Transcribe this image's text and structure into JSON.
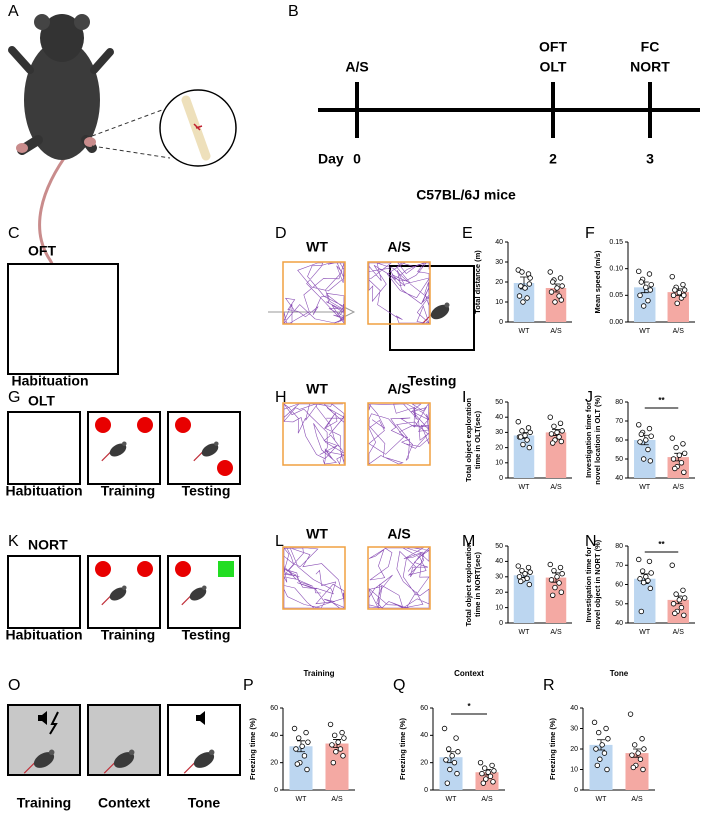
{
  "panel_letters": [
    "A",
    "B",
    "C",
    "D",
    "E",
    "F",
    "G",
    "H",
    "I",
    "J",
    "K",
    "L",
    "M",
    "N",
    "O",
    "P",
    "Q",
    "R"
  ],
  "timeline": {
    "day_label": "Day",
    "days": [
      0,
      2,
      3
    ],
    "tests": [
      [
        "A/S"
      ],
      [
        "OFT",
        "OLT"
      ],
      [
        "FC",
        "NORT"
      ]
    ],
    "caption": "C57BL/6J mice"
  },
  "schematics": {
    "C": {
      "title": "OFT",
      "labels": [
        "Habituation",
        "Testing"
      ]
    },
    "G": {
      "title": "OLT",
      "labels": [
        "Habituation",
        "Training",
        "Testing"
      ]
    },
    "K": {
      "title": "NORT",
      "labels": [
        "Habituation",
        "Training",
        "Testing"
      ]
    },
    "O": {
      "labels": [
        "Training",
        "Context",
        "Tone"
      ]
    }
  },
  "tracks": {
    "D": [
      "WT",
      "A/S"
    ],
    "H": [
      "WT",
      "A/S"
    ],
    "L": [
      "WT",
      "A/S"
    ]
  },
  "chart_data": [
    {
      "type": "bar",
      "ylabel": [
        "Total distance (m)"
      ],
      "categories": [
        "WT",
        "A/S"
      ],
      "values": [
        19.5,
        17
      ],
      "errors": [
        3,
        2
      ],
      "points": [
        [
          26,
          24,
          25,
          22,
          17,
          13,
          12,
          10,
          19,
          18
        ],
        [
          25,
          22,
          21,
          18,
          17,
          15,
          13,
          10,
          11,
          20
        ]
      ],
      "colors": [
        "#bcd6f0",
        "#f4a9a3"
      ],
      "ylim": [
        0,
        40
      ],
      "yticks": [
        0,
        10,
        20,
        30,
        40
      ]
    },
    {
      "type": "bar",
      "ylabel": [
        "Mean speed (m/s)"
      ],
      "categories": [
        "WT",
        "A/S"
      ],
      "values": [
        0.065,
        0.056
      ],
      "errors": [
        0.01,
        0.006
      ],
      "points": [
        [
          0.095,
          0.09,
          0.08,
          0.07,
          0.065,
          0.05,
          0.04,
          0.03,
          0.06,
          0.075
        ],
        [
          0.085,
          0.07,
          0.065,
          0.06,
          0.055,
          0.05,
          0.045,
          0.035,
          0.05,
          0.06
        ]
      ],
      "colors": [
        "#bcd6f0",
        "#f4a9a3"
      ],
      "ylim": [
        0,
        0.15
      ],
      "yticks": [
        {
          "value": 0,
          "label": "0.00"
        },
        {
          "value": 0.05,
          "label": "0.05"
        },
        {
          "value": 0.1,
          "label": "0.10"
        },
        {
          "value": 0.15,
          "label": "0.15"
        }
      ]
    },
    {
      "type": "bar",
      "ylabel": [
        "Total object exploration",
        "time in OLT(sec)"
      ],
      "categories": [
        "WT",
        "A/S"
      ],
      "values": [
        28,
        30
      ],
      "errors": [
        2,
        2
      ],
      "points": [
        [
          37,
          33,
          31,
          30,
          28,
          27,
          25,
          22,
          20,
          27
        ],
        [
          40,
          36,
          34,
          31,
          30,
          29,
          27,
          25,
          24,
          23
        ]
      ],
      "colors": [
        "#bcd6f0",
        "#f4a9a3"
      ],
      "ylim": [
        0,
        50
      ],
      "yticks": [
        0,
        10,
        20,
        30,
        40,
        50
      ]
    },
    {
      "type": "bar",
      "ylabel": [
        "Investigation time for",
        "novel location in OLT (%)"
      ],
      "categories": [
        "WT",
        "A/S"
      ],
      "values": [
        60,
        51
      ],
      "errors": [
        2.5,
        2
      ],
      "points": [
        [
          68,
          66,
          64,
          62,
          60,
          59,
          55,
          50,
          49,
          63
        ],
        [
          61,
          58,
          56,
          53,
          52,
          50,
          48,
          46,
          43,
          45
        ]
      ],
      "colors": [
        "#bcd6f0",
        "#f4a9a3"
      ],
      "ylim": [
        40,
        80
      ],
      "yticks": [
        40,
        50,
        60,
        70,
        80
      ],
      "significance": "**"
    },
    {
      "type": "bar",
      "ylabel": [
        "Total object exploration",
        "time in NORT(sec)"
      ],
      "categories": [
        "WT",
        "A/S"
      ],
      "values": [
        31,
        29.5
      ],
      "errors": [
        1.5,
        3
      ],
      "points": [
        [
          37,
          36,
          34,
          33,
          32,
          30,
          29,
          28,
          25,
          27
        ],
        [
          38,
          36,
          34,
          32,
          30,
          28,
          26,
          23,
          20,
          18
        ]
      ],
      "colors": [
        "#bcd6f0",
        "#f4a9a3"
      ],
      "ylim": [
        0,
        50
      ],
      "yticks": [
        0,
        10,
        20,
        30,
        40,
        50
      ]
    },
    {
      "type": "bar",
      "ylabel": [
        "Investigation time for",
        "novel object in NORT (%)"
      ],
      "categories": [
        "WT",
        "A/S"
      ],
      "values": [
        63,
        52
      ],
      "errors": [
        2.5,
        2
      ],
      "points": [
        [
          73,
          72,
          67,
          66,
          64,
          63,
          62,
          61,
          58,
          46
        ],
        [
          70,
          57,
          55,
          53,
          52,
          50,
          48,
          46,
          44,
          45
        ]
      ],
      "colors": [
        "#bcd6f0",
        "#f4a9a3"
      ],
      "ylim": [
        40,
        80
      ],
      "yticks": [
        40,
        50,
        60,
        70,
        80
      ],
      "significance": "**"
    },
    {
      "type": "bar",
      "title": "Training",
      "ylabel": [
        "Freezing time (%)"
      ],
      "categories": [
        "WT",
        "A/S"
      ],
      "values": [
        32,
        34
      ],
      "errors": [
        4,
        3
      ],
      "points": [
        [
          45,
          42,
          38,
          35,
          32,
          30,
          25,
          20,
          15,
          19
        ],
        [
          48,
          42,
          40,
          38,
          35,
          33,
          30,
          28,
          25,
          20
        ]
      ],
      "colors": [
        "#bcd6f0",
        "#f4a9a3"
      ],
      "ylim": [
        0,
        60
      ],
      "yticks": [
        0,
        20,
        40,
        60
      ]
    },
    {
      "type": "bar",
      "title": "Context",
      "ylabel": [
        "Freezing time (%)"
      ],
      "categories": [
        "WT",
        "A/S"
      ],
      "values": [
        24,
        13
      ],
      "errors": [
        4,
        2
      ],
      "points": [
        [
          45,
          38,
          30,
          28,
          25,
          22,
          20,
          15,
          12,
          5
        ],
        [
          20,
          18,
          16,
          14,
          13,
          12,
          10,
          8,
          6,
          5
        ]
      ],
      "colors": [
        "#bcd6f0",
        "#f4a9a3"
      ],
      "ylim": [
        0,
        60
      ],
      "yticks": [
        0,
        20,
        40,
        60
      ],
      "significance": "*"
    },
    {
      "type": "bar",
      "title": "Tone",
      "ylabel": [
        "Freezing time (%)"
      ],
      "categories": [
        "WT",
        "A/S"
      ],
      "values": [
        22,
        18
      ],
      "errors": [
        2.5,
        2
      ],
      "points": [
        [
          33,
          30,
          28,
          25,
          22,
          20,
          18,
          15,
          10,
          12
        ],
        [
          37,
          25,
          22,
          20,
          18,
          17,
          15,
          12,
          10,
          11
        ]
      ],
      "colors": [
        "#bcd6f0",
        "#f4a9a3"
      ],
      "ylim": [
        0,
        40
      ],
      "yticks": [
        0,
        10,
        20,
        30,
        40
      ]
    }
  ]
}
